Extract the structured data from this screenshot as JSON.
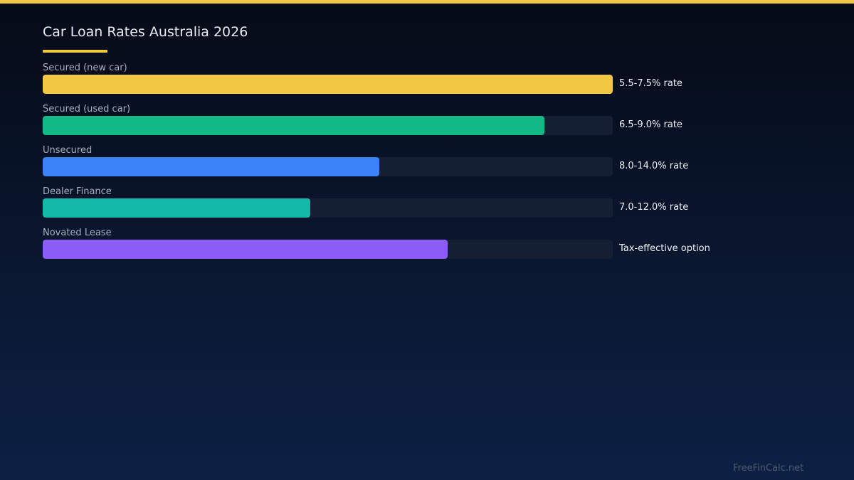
{
  "colors": {
    "accent": "#f2c744",
    "background_top": "#050b17",
    "background_bottom": "#0d2044",
    "track": "#151f33"
  },
  "chart_data": {
    "type": "bar",
    "orientation": "horizontal",
    "title": "Car Loan Rates Australia 2026",
    "xlim": [
      0,
      100
    ],
    "grid": false,
    "legend": "none",
    "bars": [
      {
        "category": "Secured (new car)",
        "value": 100,
        "label": "5.5-7.5% rate",
        "color": "#f2c744"
      },
      {
        "category": "Secured (used car)",
        "value": 88,
        "label": "6.5-9.0% rate",
        "color": "#12b886"
      },
      {
        "category": "Unsecured",
        "value": 59,
        "label": "8.0-14.0% rate",
        "color": "#3b82f6"
      },
      {
        "category": "Dealer Finance",
        "value": 47,
        "label": "7.0-12.0% rate",
        "color": "#14b8a6"
      },
      {
        "category": "Novated Lease",
        "value": 71,
        "label": "Tax-effective option",
        "color": "#8b5cf6"
      }
    ]
  },
  "footer": {
    "text": "FreeFinCalc.net"
  }
}
